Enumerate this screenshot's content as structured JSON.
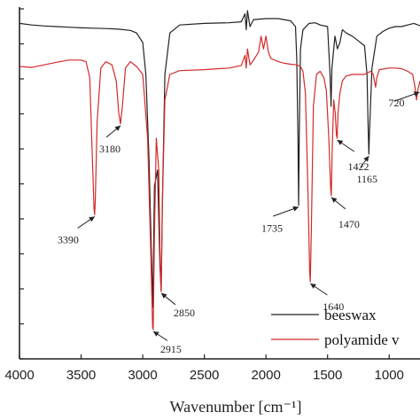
{
  "chart_data": {
    "type": "line",
    "xlabel": "Wavenumber [cm⁻¹]",
    "xlim": [
      4000,
      750
    ],
    "x_ticks": [
      4000,
      3500,
      3000,
      2500,
      2000,
      1500,
      1000
    ],
    "x_tick_labels": [
      "4000",
      "3500",
      "3000",
      "2500",
      "2000",
      "1500",
      "1000"
    ],
    "grid": false,
    "legend_position": "bottom-right",
    "series": [
      {
        "name": "beeswax",
        "color": "#222222",
        "points": [
          [
            4000,
            0.96
          ],
          [
            3900,
            0.955
          ],
          [
            3800,
            0.952
          ],
          [
            3700,
            0.95
          ],
          [
            3600,
            0.948
          ],
          [
            3500,
            0.946
          ],
          [
            3400,
            0.945
          ],
          [
            3300,
            0.944
          ],
          [
            3200,
            0.942
          ],
          [
            3100,
            0.938
          ],
          [
            3050,
            0.93
          ],
          [
            3000,
            0.9
          ],
          [
            2975,
            0.8
          ],
          [
            2950,
            0.55
          ],
          [
            2930,
            0.25
          ],
          [
            2918,
            0.07
          ],
          [
            2905,
            0.45
          ],
          [
            2880,
            0.5
          ],
          [
            2860,
            0.2
          ],
          [
            2850,
            0.12
          ],
          [
            2840,
            0.4
          ],
          [
            2820,
            0.8
          ],
          [
            2780,
            0.93
          ],
          [
            2700,
            0.955
          ],
          [
            2500,
            0.96
          ],
          [
            2300,
            0.962
          ],
          [
            2200,
            0.965
          ],
          [
            2170,
            0.99
          ],
          [
            2160,
            0.94
          ],
          [
            2150,
            1.0
          ],
          [
            2130,
            0.95
          ],
          [
            2100,
            0.972
          ],
          [
            2000,
            0.975
          ],
          [
            1900,
            0.975
          ],
          [
            1800,
            0.968
          ],
          [
            1760,
            0.95
          ],
          [
            1750,
            0.85
          ],
          [
            1740,
            0.6
          ],
          [
            1735,
            0.39
          ],
          [
            1730,
            0.6
          ],
          [
            1720,
            0.88
          ],
          [
            1700,
            0.94
          ],
          [
            1650,
            0.96
          ],
          [
            1600,
            0.962
          ],
          [
            1560,
            0.955
          ],
          [
            1500,
            0.95
          ],
          [
            1480,
            0.8
          ],
          [
            1472,
            0.7
          ],
          [
            1465,
            0.82
          ],
          [
            1440,
            0.92
          ],
          [
            1420,
            0.88
          ],
          [
            1400,
            0.9
          ],
          [
            1380,
            0.94
          ],
          [
            1350,
            0.93
          ],
          [
            1300,
            0.92
          ],
          [
            1250,
            0.905
          ],
          [
            1200,
            0.89
          ],
          [
            1180,
            0.8
          ],
          [
            1170,
            0.62
          ],
          [
            1165,
            0.55
          ],
          [
            1160,
            0.62
          ],
          [
            1140,
            0.82
          ],
          [
            1100,
            0.92
          ],
          [
            1050,
            0.935
          ],
          [
            1000,
            0.945
          ],
          [
            950,
            0.95
          ],
          [
            900,
            0.95
          ],
          [
            850,
            0.955
          ],
          [
            800,
            0.96
          ],
          [
            730,
            0.95
          ],
          [
            722,
            0.84
          ],
          [
            718,
            0.86
          ],
          [
            710,
            0.93
          ]
        ]
      },
      {
        "name": "polyamide",
        "color": "#d42a2a",
        "points": [
          [
            4000,
            0.825
          ],
          [
            3900,
            0.822
          ],
          [
            3800,
            0.83
          ],
          [
            3700,
            0.838
          ],
          [
            3600,
            0.845
          ],
          [
            3500,
            0.845
          ],
          [
            3460,
            0.84
          ],
          [
            3430,
            0.79
          ],
          [
            3410,
            0.55
          ],
          [
            3395,
            0.38
          ],
          [
            3390,
            0.36
          ],
          [
            3385,
            0.4
          ],
          [
            3370,
            0.65
          ],
          [
            3340,
            0.82
          ],
          [
            3300,
            0.84
          ],
          [
            3250,
            0.83
          ],
          [
            3215,
            0.78
          ],
          [
            3195,
            0.68
          ],
          [
            3180,
            0.645
          ],
          [
            3165,
            0.7
          ],
          [
            3140,
            0.82
          ],
          [
            3100,
            0.84
          ],
          [
            3050,
            0.825
          ],
          [
            3000,
            0.8
          ],
          [
            2960,
            0.6
          ],
          [
            2935,
            0.25
          ],
          [
            2920,
            0.01
          ],
          [
            2915,
            0.0
          ],
          [
            2905,
            0.3
          ],
          [
            2890,
            0.6
          ],
          [
            2870,
            0.5
          ],
          [
            2858,
            0.2
          ],
          [
            2850,
            0.12
          ],
          [
            2840,
            0.4
          ],
          [
            2820,
            0.72
          ],
          [
            2780,
            0.8
          ],
          [
            2700,
            0.812
          ],
          [
            2500,
            0.815
          ],
          [
            2300,
            0.82
          ],
          [
            2200,
            0.828
          ],
          [
            2170,
            0.86
          ],
          [
            2160,
            0.82
          ],
          [
            2150,
            0.88
          ],
          [
            2130,
            0.83
          ],
          [
            2100,
            0.845
          ],
          [
            2060,
            0.87
          ],
          [
            2040,
            0.92
          ],
          [
            2020,
            0.88
          ],
          [
            2000,
            0.92
          ],
          [
            1980,
            0.87
          ],
          [
            1960,
            0.85
          ],
          [
            1900,
            0.84
          ],
          [
            1850,
            0.835
          ],
          [
            1800,
            0.832
          ],
          [
            1750,
            0.83
          ],
          [
            1720,
            0.825
          ],
          [
            1700,
            0.81
          ],
          [
            1680,
            0.74
          ],
          [
            1660,
            0.45
          ],
          [
            1645,
            0.18
          ],
          [
            1640,
            0.15
          ],
          [
            1632,
            0.3
          ],
          [
            1615,
            0.7
          ],
          [
            1590,
            0.8
          ],
          [
            1560,
            0.81
          ],
          [
            1530,
            0.79
          ],
          [
            1510,
            0.75
          ],
          [
            1490,
            0.6
          ],
          [
            1475,
            0.44
          ],
          [
            1470,
            0.42
          ],
          [
            1463,
            0.55
          ],
          [
            1450,
            0.72
          ],
          [
            1438,
            0.68
          ],
          [
            1428,
            0.61
          ],
          [
            1422,
            0.6
          ],
          [
            1415,
            0.68
          ],
          [
            1400,
            0.74
          ],
          [
            1380,
            0.78
          ],
          [
            1350,
            0.795
          ],
          [
            1300,
            0.8
          ],
          [
            1250,
            0.8
          ],
          [
            1200,
            0.8
          ],
          [
            1150,
            0.81
          ],
          [
            1130,
            0.8
          ],
          [
            1110,
            0.76
          ],
          [
            1100,
            0.79
          ],
          [
            1080,
            0.815
          ],
          [
            1000,
            0.82
          ],
          [
            950,
            0.82
          ],
          [
            900,
            0.818
          ],
          [
            850,
            0.81
          ],
          [
            810,
            0.8
          ],
          [
            790,
            0.76
          ],
          [
            778,
            0.72
          ],
          [
            768,
            0.75
          ],
          [
            750,
            0.78
          ]
        ]
      }
    ],
    "annotations": [
      {
        "text": "3390",
        "x": 3390,
        "y": 0.36
      },
      {
        "text": "3180",
        "x": 3180,
        "y": 0.645
      },
      {
        "text": "2915",
        "x": 2915,
        "y": 0.0
      },
      {
        "text": "2850",
        "x": 2850,
        "y": 0.12
      },
      {
        "text": "1735",
        "x": 1735,
        "y": 0.39
      },
      {
        "text": "1640",
        "x": 1640,
        "y": 0.15
      },
      {
        "text": "1470",
        "x": 1470,
        "y": 0.42
      },
      {
        "text": "1422",
        "x": 1422,
        "y": 0.6
      },
      {
        "text": "1165",
        "x": 1165,
        "y": 0.55
      },
      {
        "text": "720",
        "x": 725,
        "y": 0.75
      }
    ],
    "legend_labels": [
      "beeswax",
      "polyamide v"
    ]
  }
}
